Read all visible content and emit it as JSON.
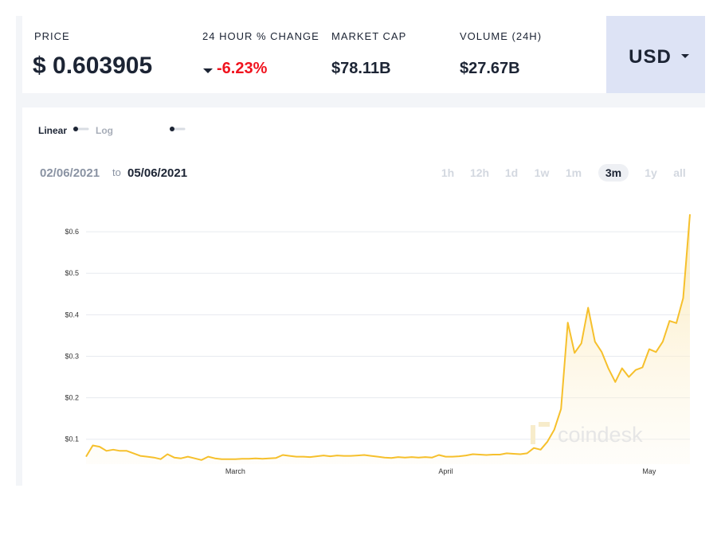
{
  "header": {
    "price_label": "PRICE",
    "price": "$ 0.603905",
    "change_label": "24 HOUR % CHANGE",
    "change": "-6.23%",
    "cap_label": "MARKET CAP",
    "cap": "$78.11B",
    "volume_label": "VOLUME (24H)",
    "volume": "$27.67B",
    "currency": "USD"
  },
  "controls": {
    "linear": "Linear",
    "log": "Log",
    "date_from": "02/06/2021",
    "date_sep": "to",
    "date_to": "05/06/2021",
    "ranges": [
      "1h",
      "12h",
      "1d",
      "1w",
      "1m",
      "3m",
      "1y",
      "all"
    ]
  },
  "chart_data": {
    "type": "line",
    "watermark": "coindesk",
    "categories": [
      null,
      null,
      null,
      null,
      null,
      null,
      null,
      null,
      null,
      null,
      null,
      null,
      null,
      null,
      null,
      null,
      null,
      null,
      null,
      null,
      null,
      null,
      "March",
      null,
      null,
      null,
      null,
      null,
      null,
      null,
      null,
      null,
      null,
      null,
      null,
      null,
      null,
      null,
      null,
      null,
      null,
      null,
      null,
      null,
      null,
      null,
      null,
      null,
      null,
      null,
      null,
      null,
      null,
      "April",
      null,
      null,
      null,
      null,
      null,
      null,
      null,
      null,
      null,
      null,
      null,
      null,
      null,
      null,
      null,
      null,
      null,
      null,
      null,
      null,
      null,
      null,
      null,
      null,
      null,
      null,
      null,
      null,
      null,
      "May",
      null,
      null,
      null,
      null,
      null,
      null
    ],
    "series": [
      {
        "color": "#f6c02c",
        "values": [
          0.058,
          0.085,
          0.082,
          0.072,
          0.075,
          0.072,
          0.072,
          0.066,
          0.06,
          0.058,
          0.056,
          0.052,
          0.064,
          0.056,
          0.054,
          0.058,
          0.054,
          0.05,
          0.058,
          0.054,
          0.052,
          0.052,
          0.052,
          0.053,
          0.053,
          0.054,
          0.053,
          0.054,
          0.055,
          0.062,
          0.06,
          0.058,
          0.058,
          0.057,
          0.059,
          0.061,
          0.059,
          0.061,
          0.06,
          0.06,
          0.061,
          0.062,
          0.06,
          0.058,
          0.056,
          0.055,
          0.057,
          0.056,
          0.057,
          0.056,
          0.057,
          0.056,
          0.062,
          0.058,
          0.058,
          0.059,
          0.061,
          0.064,
          0.063,
          0.062,
          0.063,
          0.063,
          0.066,
          0.065,
          0.064,
          0.066,
          0.079,
          0.075,
          0.094,
          0.123,
          0.173,
          0.381,
          0.308,
          0.331,
          0.417,
          0.335,
          0.31,
          0.27,
          0.238,
          0.271,
          0.25,
          0.267,
          0.273,
          0.317,
          0.31,
          0.335,
          0.385,
          0.38,
          0.44,
          0.642
        ]
      }
    ],
    "ylim": [
      0.04,
      0.65
    ],
    "yticks": [
      {
        "value": 0.1,
        "label": "$0.1"
      },
      {
        "value": 0.2,
        "label": "$0.2"
      },
      {
        "value": 0.3,
        "label": "$0.3"
      },
      {
        "value": 0.4,
        "label": "$0.4"
      },
      {
        "value": 0.5,
        "label": "$0.5"
      },
      {
        "value": 0.6,
        "label": "$0.6"
      }
    ],
    "grid": true
  }
}
